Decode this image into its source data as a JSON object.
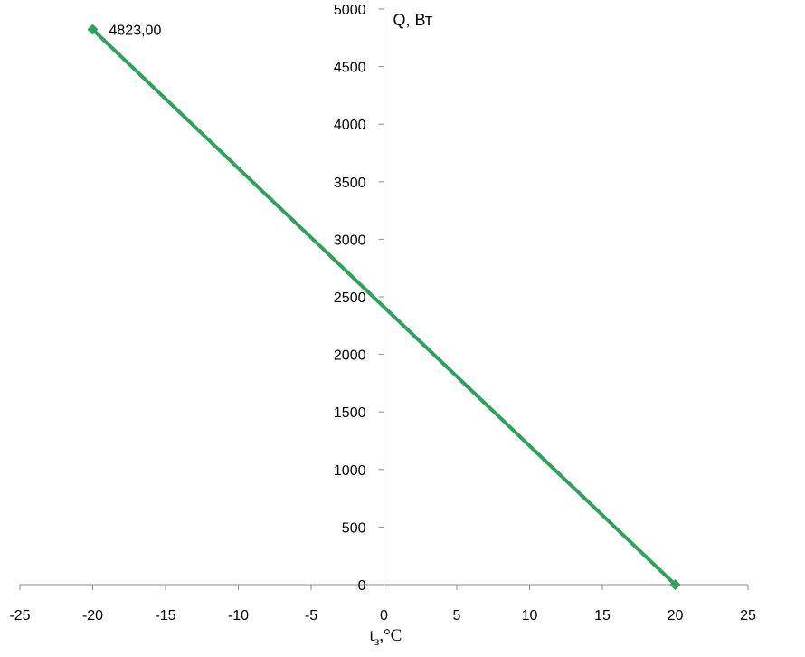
{
  "chart_data": {
    "type": "line",
    "xlabel": "t",
    "xlabel_subscript": "з",
    "xlabel_suffix": ",°C",
    "ylabel": "Q, Вт",
    "xlim": [
      -25,
      25
    ],
    "ylim": [
      0,
      5000
    ],
    "x_ticks": [
      -25,
      -20,
      -15,
      -10,
      -5,
      0,
      5,
      10,
      15,
      20,
      25
    ],
    "y_ticks": [
      0,
      500,
      1000,
      1500,
      2000,
      2500,
      3000,
      3500,
      4000,
      4500,
      5000
    ],
    "grid": false,
    "legend": "none",
    "series": [
      {
        "color": "#2ea15a",
        "points": [
          {
            "x": -20,
            "y": 4823.0,
            "label": "4823,00"
          },
          {
            "x": 20,
            "y": 0,
            "label": ""
          }
        ]
      }
    ]
  }
}
